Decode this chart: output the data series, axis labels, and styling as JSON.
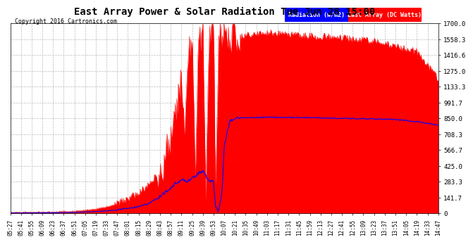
{
  "title": "East Array Power & Solar Radiation Tue Jun 28 15:00",
  "copyright": "Copyright 2016 Cartronics.com",
  "legend_labels": [
    "Radiation (w/m2)",
    "East Array (DC Watts)"
  ],
  "legend_colors": [
    "#0000ff",
    "#ff0000"
  ],
  "ymin": 0,
  "ymax": 1700,
  "yticks": [
    0,
    141.7,
    283.3,
    425.0,
    566.7,
    708.3,
    850.0,
    991.7,
    1133.3,
    1275.0,
    1416.6,
    1558.3,
    1700.0
  ],
  "background_color": "#ffffff",
  "plot_background": "#ffffff",
  "grid_color": "#bbbbbb",
  "red_color": "#ff0000",
  "blue_color": "#0000ff",
  "title_fontsize": 11,
  "xtick_labels": [
    "05:27",
    "05:41",
    "05:55",
    "06:09",
    "06:23",
    "06:37",
    "06:51",
    "07:05",
    "07:19",
    "07:33",
    "07:47",
    "08:01",
    "08:15",
    "08:29",
    "08:43",
    "08:57",
    "09:11",
    "09:25",
    "09:39",
    "09:53",
    "10:07",
    "10:21",
    "10:35",
    "10:49",
    "11:03",
    "11:17",
    "11:31",
    "11:45",
    "11:59",
    "12:13",
    "12:27",
    "12:41",
    "12:55",
    "13:09",
    "13:23",
    "13:37",
    "13:51",
    "14:05",
    "14:19",
    "14:33",
    "14:47"
  ],
  "n_ticks": 41,
  "pts_per_tick": 14
}
